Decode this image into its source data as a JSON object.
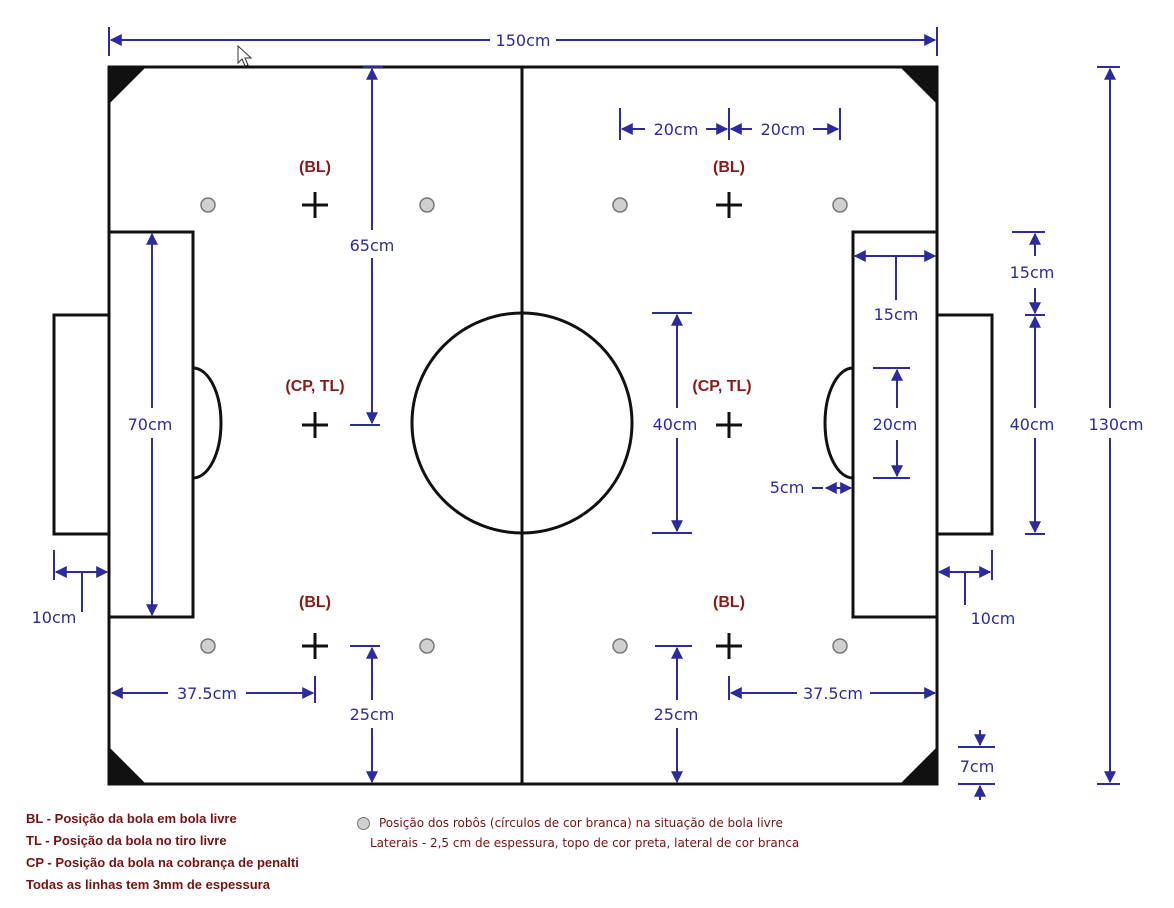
{
  "dimensions": {
    "width_top": "150cm",
    "height_right": "130cm",
    "goal_area_height": "70cm",
    "goal_width_left": "10cm",
    "goal_width_right": "10cm",
    "freekick_center_offset": "65cm",
    "center_circle_diameter": "40cm",
    "robot_spacing_left": "20cm",
    "robot_spacing_right": "20cm",
    "goal_area_depth": "15cm",
    "goal_offset_top": "15cm",
    "goal_opening": "40cm",
    "arc_height": "20cm",
    "arc_depth": "5cm",
    "bl_distance_left": "37.5cm",
    "bl_distance_right": "37.5cm",
    "bl_offset_bottom_left": "25cm",
    "bl_offset_bottom_right": "25cm",
    "corner_size": "7cm"
  },
  "markers": {
    "bl": "(BL)",
    "cp_tl": "(CP, TL)"
  },
  "legend": {
    "bl": "BL - Posição da bola em bola livre",
    "tl": "TL - Posição da bola no tiro livre",
    "cp": "CP - Posição da bola na cobrança de penalti",
    "lines": "Todas as linhas tem 3mm de espessura",
    "robots": "Posição dos robôs (círculos de cor branca) na situação de bola livre",
    "walls": "Laterais - 2,5 cm de espessura, topo de cor preta, lateral de cor branca"
  },
  "colors": {
    "dimension": "#2b2b9e",
    "marker": "#8a1a1a",
    "lines": "#111111"
  }
}
